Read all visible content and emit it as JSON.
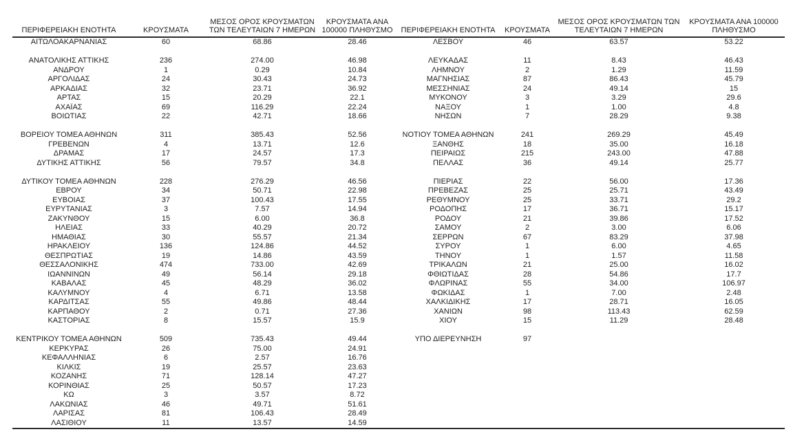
{
  "colors": {
    "text": "#212121",
    "rule": "#2b2b2b",
    "background": "#ffffff"
  },
  "sheet": {
    "headers": [
      "ΠΕΡΙΦΕΡΕΙΑΚΗ ΕΝΟΤΗΤΑ",
      "ΚΡΟΥΣΜΑΤΑ",
      "ΜΕΣΟΣ ΟΡΟΣ ΚΡΟΥΣΜΑΤΩΝ ΤΩΝ ΤΕΛΕΥΤΑΙΩΝ 7 ΗΜΕΡΩΝ",
      "ΚΡΟΥΣΜΑΤΑ ΑΝΑ 100000 ΠΛΗΘΥΣΜΟ"
    ],
    "left_rows": [
      [
        "ΑΙΤΩΛΟΑΚΑΡΝΑΝΙΑΣ",
        "60",
        "68.86",
        "28.46"
      ],
      null,
      [
        "ΑΝΑΤΟΛΙΚΗΣ ΑΤΤΙΚΗΣ",
        "236",
        "274.00",
        "46.98"
      ],
      [
        "ΑΝΔΡΟΥ",
        "1",
        "0.29",
        "10.84"
      ],
      [
        "ΑΡΓΟΛΙΔΑΣ",
        "24",
        "30.43",
        "24.73"
      ],
      [
        "ΑΡΚΑΔΙΑΣ",
        "32",
        "23.71",
        "36.92"
      ],
      [
        "ΑΡΤΑΣ",
        "15",
        "20.29",
        "22.1"
      ],
      [
        "ΑΧΑΪΑΣ",
        "69",
        "116.29",
        "22.24"
      ],
      [
        "ΒΟΙΩΤΙΑΣ",
        "22",
        "42.71",
        "18.66"
      ],
      null,
      [
        "ΒΟΡΕΙΟΥ ΤΟΜΕΑ ΑΘΗΝΩΝ",
        "311",
        "385.43",
        "52.56"
      ],
      [
        "ΓΡΕΒΕΝΩΝ",
        "4",
        "13.71",
        "12.6"
      ],
      [
        "ΔΡΑΜΑΣ",
        "17",
        "24.57",
        "17.3"
      ],
      [
        "ΔΥΤΙΚΗΣ ΑΤΤΙΚΗΣ",
        "56",
        "79.57",
        "34.8"
      ],
      null,
      [
        "ΔΥΤΙΚΟΥ ΤΟΜΕΑ ΑΘΗΝΩΝ",
        "228",
        "276.29",
        "46.56"
      ],
      [
        "ΕΒΡΟΥ",
        "34",
        "50.71",
        "22.98"
      ],
      [
        "ΕΥΒΟΙΑΣ",
        "37",
        "100.43",
        "17.55"
      ],
      [
        "ΕΥΡΥΤΑΝΙΑΣ",
        "3",
        "7.57",
        "14.94"
      ],
      [
        "ΖΑΚΥΝΘΟΥ",
        "15",
        "6.00",
        "36.8"
      ],
      [
        "ΗΛΕΙΑΣ",
        "33",
        "40.29",
        "20.72"
      ],
      [
        "ΗΜΑΘΙΑΣ",
        "30",
        "55.57",
        "21.34"
      ],
      [
        "ΗΡΑΚΛΕΙΟΥ",
        "136",
        "124.86",
        "44.52"
      ],
      [
        "ΘΕΣΠΡΩΤΙΑΣ",
        "19",
        "14.86",
        "43.59"
      ],
      [
        "ΘΕΣΣΑΛΟΝΙΚΗΣ",
        "474",
        "733.00",
        "42.69"
      ],
      [
        "ΙΩΑΝΝΙΝΩΝ",
        "49",
        "56.14",
        "29.18"
      ],
      [
        "ΚΑΒΑΛΑΣ",
        "45",
        "48.29",
        "36.02"
      ],
      [
        "ΚΑΛΥΜΝΟΥ",
        "4",
        "6.71",
        "13.58"
      ],
      [
        "ΚΑΡΔΙΤΣΑΣ",
        "55",
        "49.86",
        "48.44"
      ],
      [
        "ΚΑΡΠΑΘΟΥ",
        "2",
        "0.71",
        "27.36"
      ],
      [
        "ΚΑΣΤΟΡΙΑΣ",
        "8",
        "15.57",
        "15.9"
      ],
      null,
      [
        "ΚΕΝΤΡΙΚΟΥ ΤΟΜΕΑ ΑΘΗΝΩΝ",
        "509",
        "735.43",
        "49.44"
      ],
      [
        "ΚΕΡΚΥΡΑΣ",
        "26",
        "75.00",
        "24.91"
      ],
      [
        "ΚΕΦΑΛΛΗΝΙΑΣ",
        "6",
        "2.57",
        "16.76"
      ],
      [
        "ΚΙΛΚΙΣ",
        "19",
        "25.57",
        "23.63"
      ],
      [
        "ΚΟΖΑΝΗΣ",
        "71",
        "128.14",
        "47.27"
      ],
      [
        "ΚΟΡΙΝΘΙΑΣ",
        "25",
        "50.57",
        "17.23"
      ],
      [
        "ΚΩ",
        "3",
        "3.57",
        "8.72"
      ],
      [
        "ΛΑΚΩΝΙΑΣ",
        "46",
        "49.71",
        "51.61"
      ],
      [
        "ΛΑΡΙΣΑΣ",
        "81",
        "106.43",
        "28.49"
      ],
      [
        "ΛΑΣΙΘΙΟΥ",
        "11",
        "13.57",
        "14.59"
      ]
    ],
    "right_rows": [
      [
        "ΛΕΣΒΟΥ",
        "46",
        "63.57",
        "53.22"
      ],
      null,
      [
        "ΛΕΥΚΑΔΑΣ",
        "11",
        "8.43",
        "46.43"
      ],
      [
        "ΛΗΜΝΟΥ",
        "2",
        "1.29",
        "11.59"
      ],
      [
        "ΜΑΓΝΗΣΙΑΣ",
        "87",
        "86.43",
        "45.79"
      ],
      [
        "ΜΕΣΣΗΝΙΑΣ",
        "24",
        "49.14",
        "15"
      ],
      [
        "ΜΥΚΟΝΟΥ",
        "3",
        "3.29",
        "29.6"
      ],
      [
        "ΝΑΞΟΥ",
        "1",
        "1.00",
        "4.8"
      ],
      [
        "ΝΗΣΩΝ",
        "7",
        "28.29",
        "9.38"
      ],
      null,
      [
        "ΝΟΤΙΟΥ ΤΟΜΕΑ ΑΘΗΝΩΝ",
        "241",
        "269.29",
        "45.49"
      ],
      [
        "ΞΑΝΘΗΣ",
        "18",
        "35.00",
        "16.18"
      ],
      [
        "ΠΕΙΡΑΙΩΣ",
        "215",
        "243.00",
        "47.88"
      ],
      [
        "ΠΕΛΛΑΣ",
        "36",
        "49.14",
        "25.77"
      ],
      null,
      [
        "ΠΙΕΡΙΑΣ",
        "22",
        "56.00",
        "17.36"
      ],
      [
        "ΠΡΕΒΕΖΑΣ",
        "25",
        "25.71",
        "43.49"
      ],
      [
        "ΡΕΘΥΜΝΟΥ",
        "25",
        "33.71",
        "29.2"
      ],
      [
        "ΡΟΔΟΠΗΣ",
        "17",
        "36.71",
        "15.17"
      ],
      [
        "ΡΟΔΟΥ",
        "21",
        "39.86",
        "17.52"
      ],
      [
        "ΣΑΜΟΥ",
        "2",
        "3.00",
        "6.06"
      ],
      [
        "ΣΕΡΡΩΝ",
        "67",
        "83.29",
        "37.98"
      ],
      [
        "ΣΥΡΟΥ",
        "1",
        "6.00",
        "4.65"
      ],
      [
        "ΤΗΝΟΥ",
        "1",
        "1.57",
        "11.58"
      ],
      [
        "ΤΡΙΚΑΛΩΝ",
        "21",
        "25.00",
        "16.02"
      ],
      [
        "ΦΘΙΩΤΙΔΑΣ",
        "28",
        "54.86",
        "17.7"
      ],
      [
        "ΦΛΩΡΙΝΑΣ",
        "55",
        "34.00",
        "106.97"
      ],
      [
        "ΦΩΚΙΔΑΣ",
        "1",
        "7.00",
        "2.48"
      ],
      [
        "ΧΑΛΚΙΔΙΚΗΣ",
        "17",
        "28.71",
        "16.05"
      ],
      [
        "ΧΑΝΙΩΝ",
        "98",
        "113.43",
        "62.59"
      ],
      [
        "ΧΙΟΥ",
        "15",
        "11.29",
        "28.48"
      ],
      null,
      [
        "ΥΠΟ ΔΙΕΡΕΥΝΗΣΗ",
        "97",
        "",
        ""
      ],
      null,
      null,
      null,
      null,
      null,
      null,
      null,
      null,
      null
    ]
  }
}
